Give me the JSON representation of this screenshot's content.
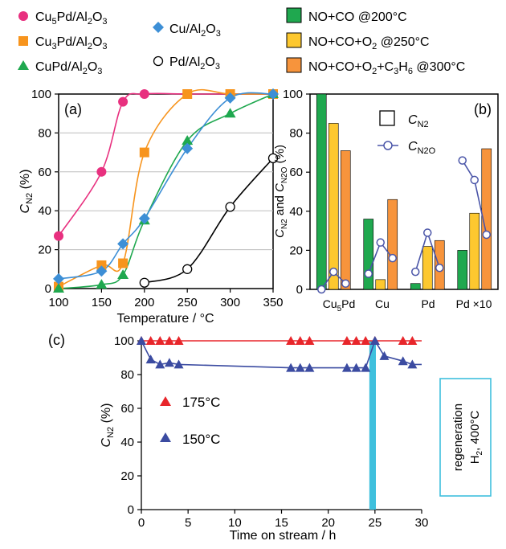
{
  "chart_data": [
    {
      "panel": "(a)",
      "type": "scatter",
      "title": "",
      "xlabel": "Temperature / °C",
      "ylabel": {
        "main": "C",
        "sub": "N2",
        "unit": " (%)"
      },
      "xlim": [
        100,
        350
      ],
      "ylim": [
        0,
        100
      ],
      "xticks": [
        "100",
        "150",
        "200",
        "250",
        "300",
        "350"
      ],
      "yticks": [
        "0",
        "20",
        "40",
        "60",
        "80",
        "100"
      ],
      "legend": [
        "Cu5Pd/Al2O3",
        "Cu3Pd/Al2O3",
        "CuPd/Al2O3",
        "Cu/Al2O3",
        "Pd/Al2O3"
      ],
      "series": [
        {
          "name": "Cu5Pd/Al2O3",
          "marker": "circle",
          "color": "#e8307f",
          "x": [
            100,
            150,
            175,
            200,
            250,
            300,
            350
          ],
          "y": [
            27,
            60,
            96,
            100,
            100,
            100,
            100
          ]
        },
        {
          "name": "Cu3Pd/Al2O3",
          "marker": "square",
          "color": "#f7941d",
          "x": [
            100,
            150,
            175,
            200,
            250,
            300,
            350
          ],
          "y": [
            1,
            12,
            13,
            70,
            100,
            100,
            100
          ]
        },
        {
          "name": "CuPd/Al2O3",
          "marker": "triangle",
          "color": "#1fa84f",
          "x": [
            100,
            150,
            175,
            200,
            250,
            300,
            350
          ],
          "y": [
            0,
            2,
            7,
            35,
            76,
            90,
            100
          ]
        },
        {
          "name": "Cu/Al2O3",
          "marker": "diamond",
          "color": "#3d8fd6",
          "x": [
            100,
            150,
            175,
            200,
            250,
            300,
            350
          ],
          "y": [
            5,
            9,
            23,
            36,
            72,
            98,
            100
          ]
        },
        {
          "name": "Pd/Al2O3",
          "marker": "open-circle",
          "color": "#000000",
          "x": [
            200,
            250,
            300,
            350
          ],
          "y": [
            3,
            10,
            42,
            67
          ]
        }
      ]
    },
    {
      "panel": "(b)",
      "type": "bar",
      "title": "",
      "ylabel": "CN2 and CN2O (%)",
      "ylim": [
        0,
        100
      ],
      "yticks": [
        "0",
        "20",
        "40",
        "60",
        "80",
        "100"
      ],
      "categories": [
        "Cu5Pd",
        "Cu",
        "Pd",
        "Pd ×10"
      ],
      "legend": [
        "NO+CO @200°C",
        "NO+CO+O2 @250°C",
        "NO+CO+O2+C3H6 @300°C"
      ],
      "legend_inset": [
        "CN2",
        "CN2O"
      ],
      "series": [
        {
          "name": "NO+CO @200°C",
          "color": "#1fa84f",
          "values": [
            100,
            36,
            3,
            20
          ]
        },
        {
          "name": "NO+CO+O2 @250°C",
          "color": "#fdc82f",
          "values": [
            85,
            5,
            22,
            39
          ]
        },
        {
          "name": "NO+CO+O2+C3H6 @300°C",
          "color": "#f7943c",
          "values": [
            71,
            46,
            25,
            72
          ]
        },
        {
          "name": "CN2O",
          "type": "line",
          "color": "#4a55a8",
          "values": [
            [
              0,
              9,
              3
            ],
            [
              8,
              24,
              16
            ],
            [
              9,
              29,
              11
            ],
            [
              66,
              56,
              28
            ]
          ]
        }
      ]
    },
    {
      "panel": "(c)",
      "type": "line",
      "title": "",
      "xlabel": "Time on stream / h",
      "ylabel": "CN2 (%)",
      "xlim": [
        0,
        30
      ],
      "ylim": [
        0,
        100
      ],
      "xticks": [
        "0",
        "5",
        "10",
        "15",
        "20",
        "25",
        "30"
      ],
      "yticks": [
        "0",
        "20",
        "40",
        "60",
        "80",
        "100"
      ],
      "annotation": "regeneration H2, 400°C",
      "regeneration_window": [
        24.4,
        25.1
      ],
      "series": [
        {
          "name": "175°C",
          "color": "#e8262b",
          "x": [
            0,
            1,
            2,
            3,
            4,
            16,
            17,
            18,
            22,
            23,
            24,
            25,
            28,
            29
          ],
          "y": [
            100,
            100,
            100,
            100,
            100,
            100,
            100,
            100,
            100,
            100,
            100,
            100,
            100,
            100
          ]
        },
        {
          "name": "150°C",
          "color": "#3b4ba1",
          "x": [
            0,
            1,
            2,
            3,
            4,
            16,
            17,
            18,
            22,
            23,
            24,
            25,
            26,
            28,
            29
          ],
          "y": [
            100,
            89,
            86,
            87,
            86,
            84,
            84,
            84,
            84,
            84,
            84,
            100,
            91,
            88,
            86
          ]
        }
      ]
    }
  ],
  "legend_labels": {
    "cu5pd": {
      "pre": "Cu",
      "s1": "5",
      "mid": "Pd/Al",
      "s2": "2",
      "mid2": "O",
      "s3": "3"
    },
    "cu3pd": {
      "pre": "Cu",
      "s1": "3",
      "mid": "Pd/Al",
      "s2": "2",
      "mid2": "O",
      "s3": "3"
    },
    "cupd": {
      "pre": "CuPd/Al",
      "s1": "2",
      "mid": "O",
      "s2": "3"
    },
    "cu": {
      "pre": "Cu/Al",
      "s1": "2",
      "mid": "O",
      "s2": "3"
    },
    "pd": {
      "pre": "Pd/Al",
      "s1": "2",
      "mid": "O",
      "s2": "3"
    },
    "noco": "NO+CO @200°C",
    "nocoo2": {
      "pre": "NO+CO+O",
      "s1": "2",
      "post": " @250°C"
    },
    "nocoo2c3h6": {
      "pre": "NO+CO+O",
      "s1": "2",
      "mid": "+C",
      "s2": "3",
      "mid2": "H",
      "s3": "6",
      "post": " @300°C"
    }
  },
  "panel_a": {
    "tag": "(a)",
    "xlabel": "Temperature / °C",
    "ylabel": {
      "main": "C",
      "sub": "N2",
      "unit": " (%)"
    },
    "xticks": [
      "100",
      "150",
      "200",
      "250",
      "300",
      "350"
    ],
    "yticks": [
      "0",
      "20",
      "40",
      "60",
      "80",
      "100"
    ]
  },
  "panel_b": {
    "tag": "(b)",
    "ylabel": {
      "c1": "C",
      "s1": "N2",
      "and": " and ",
      "c2": "C",
      "s2": "N2O",
      "unit": " (%)"
    },
    "yticks": [
      "0",
      "20",
      "40",
      "60",
      "80",
      "100"
    ],
    "categories": {
      "cu5pd_pre": "Cu",
      "cu5pd_sub": "5",
      "cu5pd_post": "Pd",
      "cu": "Cu",
      "pd": "Pd",
      "pd10": "Pd ×10"
    },
    "inset_cn2": {
      "c": "C",
      "s": "N2"
    },
    "inset_cn2o": {
      "c": "C",
      "s": "N2O"
    }
  },
  "panel_c": {
    "tag": "(c)",
    "xlabel": "Time on stream / h",
    "ylabel": {
      "main": "C",
      "sub": "N2",
      "unit": " (%)"
    },
    "xticks": [
      "0",
      "5",
      "10",
      "15",
      "20",
      "25",
      "30"
    ],
    "yticks": [
      "0",
      "20",
      "40",
      "60",
      "80",
      "100"
    ],
    "legend_175": "175°C",
    "legend_150": "150°C",
    "regen_line1": "regeneration",
    "regen_line2_pre": "H",
    "regen_line2_sub": "2",
    "regen_line2_post": ", 400°C"
  },
  "colors": {
    "magenta": "#e8307f",
    "orange": "#f7941d",
    "green": "#1fa84f",
    "blue": "#3d8fd6",
    "bar_green": "#1fa84f",
    "bar_yellow": "#fdc82f",
    "bar_orange": "#f7943c",
    "n2o_line": "#4a55a8",
    "red": "#e8262b",
    "navy": "#3b4ba1",
    "cyan": "#3fc0dd"
  }
}
